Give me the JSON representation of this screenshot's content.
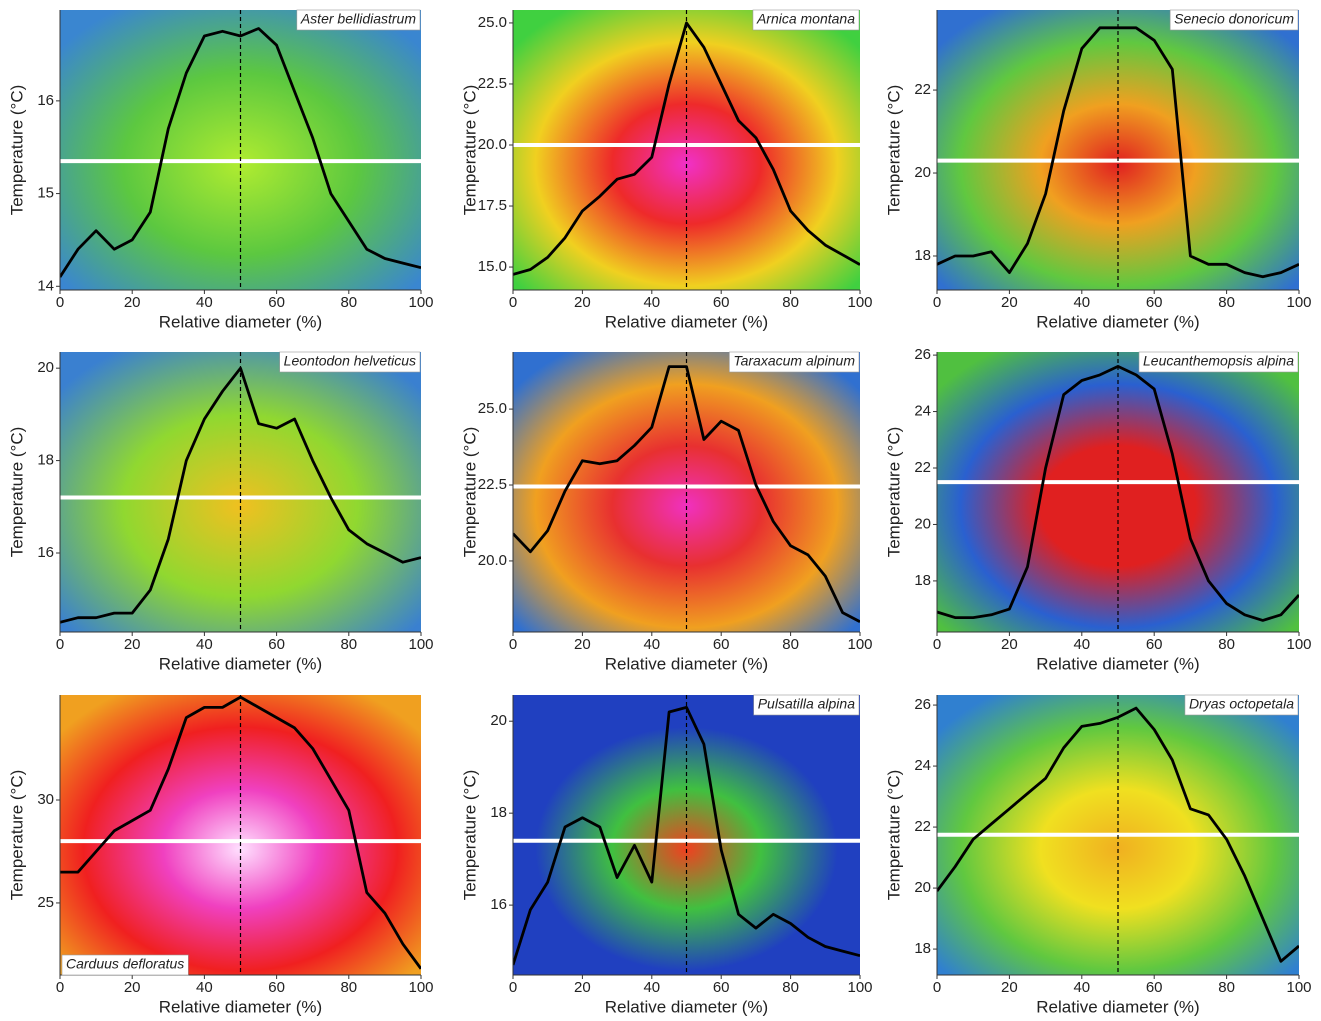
{
  "chart_data": [
    {
      "type": "line",
      "title": "Aster bellidiastrum",
      "x_label": "Relative diameter (%)",
      "y_label": "Temperature (°C)",
      "x": [
        0,
        5,
        10,
        15,
        20,
        25,
        30,
        35,
        40,
        45,
        50,
        55,
        60,
        65,
        70,
        75,
        80,
        85,
        90,
        95,
        100
      ],
      "values": [
        14.1,
        14.4,
        14.6,
        14.4,
        14.5,
        14.8,
        15.7,
        16.3,
        16.7,
        16.75,
        16.7,
        16.78,
        16.6,
        16.1,
        15.6,
        15.0,
        14.7,
        14.4,
        14.3,
        14.25,
        14.2
      ],
      "color": "#000000",
      "hline": 15.35,
      "vline": 50,
      "xlim": [
        0,
        100
      ],
      "ylim": [
        13.96,
        16.98
      ],
      "xticks": [
        0,
        20,
        40,
        60,
        80,
        100
      ],
      "yticks": [
        14,
        15,
        16
      ]
    },
    {
      "type": "line",
      "title": "Arnica montana",
      "x_label": "Relative diameter (%)",
      "y_label": "Temperature (°C)",
      "x": [
        0,
        5,
        10,
        15,
        20,
        25,
        30,
        35,
        40,
        45,
        50,
        55,
        60,
        65,
        70,
        75,
        80,
        85,
        90,
        95,
        100
      ],
      "values": [
        14.7,
        14.9,
        15.4,
        16.2,
        17.3,
        17.9,
        18.6,
        18.8,
        19.5,
        22.5,
        25.0,
        24.0,
        22.5,
        21.0,
        20.3,
        19.0,
        17.3,
        16.5,
        15.9,
        15.5,
        15.1
      ],
      "color": "#000000",
      "hline": 20,
      "vline": 50,
      "xlim": [
        0,
        100
      ],
      "ylim": [
        14.06,
        25.53
      ],
      "xticks": [
        0,
        20,
        40,
        60,
        80,
        100
      ],
      "yticks": [
        {
          "value": 15,
          "label": "15.0"
        },
        17.5,
        {
          "value": 20,
          "label": "20.0"
        },
        22.5,
        {
          "value": 25,
          "label": "25.0"
        }
      ]
    },
    {
      "type": "line",
      "title": "Senecio donoricum",
      "x_label": "Relative diameter (%)",
      "y_label": "Temperature (°C)",
      "x": [
        0,
        5,
        10,
        15,
        20,
        25,
        30,
        35,
        40,
        45,
        50,
        55,
        60,
        65,
        70,
        75,
        80,
        85,
        90,
        95,
        100
      ],
      "values": [
        17.8,
        18.0,
        18.0,
        18.1,
        17.6,
        18.3,
        19.5,
        21.5,
        23.0,
        23.5,
        23.5,
        23.5,
        23.2,
        22.5,
        18.0,
        17.8,
        17.8,
        17.6,
        17.5,
        17.6,
        17.8
      ],
      "color": "#000000",
      "hline": 20.3,
      "vline": 50,
      "xlim": [
        0,
        100
      ],
      "ylim": [
        17.18,
        23.93
      ],
      "xticks": [
        0,
        20,
        40,
        60,
        80,
        100
      ],
      "yticks": [
        18,
        20,
        22
      ]
    },
    {
      "type": "line",
      "title": "Leontodon helveticus",
      "x_label": "Relative diameter (%)",
      "y_label": "Temperature (°C)",
      "x": [
        0,
        5,
        10,
        15,
        20,
        25,
        30,
        35,
        40,
        45,
        50,
        55,
        60,
        65,
        70,
        75,
        80,
        85,
        90,
        95,
        100
      ],
      "values": [
        14.5,
        14.6,
        14.6,
        14.7,
        14.7,
        15.2,
        16.3,
        18.0,
        18.9,
        19.5,
        20.0,
        18.8,
        18.7,
        18.9,
        18.0,
        17.2,
        16.5,
        16.2,
        16.0,
        15.8,
        15.9
      ],
      "color": "#000000",
      "hline": 17.2,
      "vline": 50,
      "xlim": [
        0,
        100
      ],
      "ylim": [
        14.29,
        20.35
      ],
      "xticks": [
        0,
        20,
        40,
        60,
        80,
        100
      ],
      "yticks": [
        16,
        18,
        20
      ]
    },
    {
      "type": "line",
      "title": "Taraxacum alpinum",
      "x_label": "Relative diameter (%)",
      "y_label": "Temperature (°C)",
      "x": [
        0,
        5,
        10,
        15,
        20,
        25,
        30,
        35,
        40,
        45,
        50,
        55,
        60,
        65,
        70,
        75,
        80,
        85,
        90,
        95,
        100
      ],
      "values": [
        20.9,
        20.3,
        21.0,
        22.3,
        23.3,
        23.2,
        23.3,
        23.8,
        24.4,
        26.4,
        26.4,
        24.0,
        24.6,
        24.3,
        22.5,
        21.3,
        20.5,
        20.2,
        19.5,
        18.3,
        18.0
      ],
      "color": "#000000",
      "hline": 22.45,
      "vline": 50,
      "xlim": [
        0,
        100
      ],
      "ylim": [
        17.66,
        26.88
      ],
      "xticks": [
        0,
        20,
        40,
        60,
        80,
        100
      ],
      "yticks": [
        {
          "value": 20,
          "label": "20.0"
        },
        22.5,
        {
          "value": 25,
          "label": "25.0"
        }
      ]
    },
    {
      "type": "line",
      "title": "Leucanthemopsis alpina",
      "x_label": "Relative diameter (%)",
      "y_label": "Temperature (°C)",
      "x": [
        0,
        5,
        10,
        15,
        20,
        25,
        30,
        35,
        40,
        45,
        50,
        55,
        60,
        65,
        70,
        75,
        80,
        85,
        90,
        95,
        100
      ],
      "values": [
        16.9,
        16.7,
        16.7,
        16.8,
        17.0,
        18.5,
        22.0,
        24.6,
        25.1,
        25.3,
        25.6,
        25.3,
        24.8,
        22.5,
        19.5,
        18.0,
        17.2,
        16.8,
        16.6,
        16.8,
        17.5
      ],
      "color": "#000000",
      "hline": 21.5,
      "vline": 50,
      "xlim": [
        0,
        100
      ],
      "ylim": [
        16.19,
        26.11
      ],
      "xticks": [
        0,
        20,
        40,
        60,
        80,
        100
      ],
      "yticks": [
        18,
        20,
        22,
        24,
        26
      ]
    },
    {
      "type": "line",
      "title": "Carduus defloratus",
      "x_label": "Relative diameter (%)",
      "y_label": "Temperature (°C)",
      "x": [
        0,
        5,
        10,
        15,
        20,
        25,
        30,
        35,
        40,
        45,
        50,
        55,
        60,
        65,
        70,
        75,
        80,
        85,
        90,
        95,
        100
      ],
      "values": [
        26.5,
        26.5,
        27.5,
        28.5,
        29.0,
        29.5,
        31.5,
        34.0,
        34.5,
        34.5,
        35.0,
        34.5,
        34.0,
        33.5,
        32.5,
        31.0,
        29.5,
        25.5,
        24.5,
        23.0,
        21.8
      ],
      "color": "#000000",
      "hline": 28,
      "vline": 50,
      "xlim": [
        0,
        100
      ],
      "ylim": [
        21.5,
        35.1
      ],
      "xticks": [
        0,
        20,
        40,
        60,
        80,
        100
      ],
      "yticks": [
        25,
        30
      ]
    },
    {
      "type": "line",
      "title": "Pulsatilla alpina",
      "x_label": "Relative diameter (%)",
      "y_label": "Temperature (°C)",
      "x": [
        0,
        5,
        10,
        15,
        20,
        25,
        30,
        35,
        40,
        45,
        50,
        55,
        60,
        65,
        70,
        75,
        80,
        85,
        90,
        95,
        100
      ],
      "values": [
        14.7,
        15.9,
        16.5,
        17.7,
        17.9,
        17.7,
        16.6,
        17.3,
        16.5,
        20.2,
        20.3,
        19.5,
        17.2,
        15.8,
        15.5,
        15.8,
        15.6,
        15.3,
        15.1,
        15.0,
        14.9
      ],
      "color": "#000000",
      "hline": 17.4,
      "vline": 50,
      "xlim": [
        0,
        100
      ],
      "ylim": [
        14.48,
        20.57
      ],
      "xticks": [
        0,
        20,
        40,
        60,
        80,
        100
      ],
      "yticks": [
        16,
        18,
        20
      ]
    },
    {
      "type": "line",
      "title": "Dryas octopetala",
      "x_label": "Relative diameter (%)",
      "y_label": "Temperature (°C)",
      "x": [
        0,
        5,
        10,
        15,
        20,
        25,
        30,
        35,
        40,
        45,
        50,
        55,
        60,
        65,
        70,
        75,
        80,
        85,
        90,
        95,
        100
      ],
      "values": [
        19.9,
        20.7,
        21.6,
        22.1,
        22.6,
        23.1,
        23.6,
        24.6,
        25.3,
        25.4,
        25.6,
        25.9,
        25.2,
        24.2,
        22.6,
        22.4,
        21.6,
        20.4,
        19.0,
        17.6,
        18.1
      ],
      "color": "#000000",
      "hline": 21.75,
      "vline": 50,
      "xlim": [
        0,
        100
      ],
      "ylim": [
        17.15,
        26.33
      ],
      "xticks": [
        0,
        20,
        40,
        60,
        80,
        100
      ],
      "yticks": [
        18,
        20,
        22,
        24,
        26
      ]
    }
  ]
}
